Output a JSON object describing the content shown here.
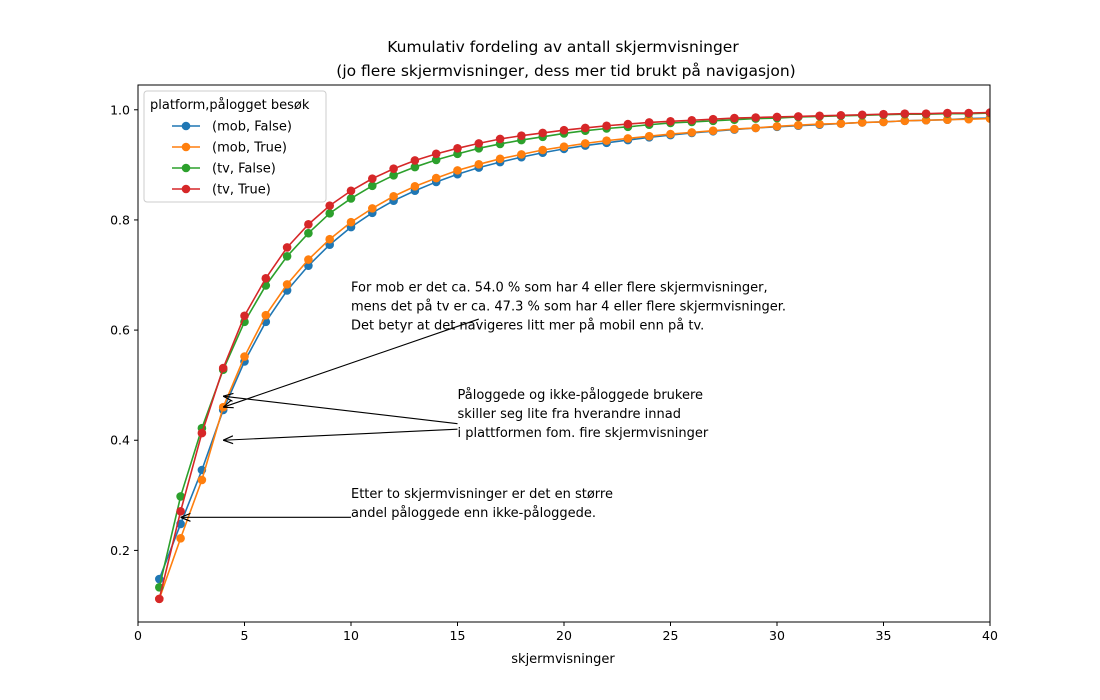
{
  "chart_data": {
    "type": "line",
    "title": "Kumulativ fordeling av antall skjermvisninger",
    "subtitle": "(jo flere skjermvisninger, dess mer tid brukt på navigasjon)",
    "xlabel": "skjermvisninger",
    "ylabel": "",
    "xlim": [
      0,
      40
    ],
    "ylim": [
      0.07,
      1.045
    ],
    "xticks": [
      0,
      5,
      10,
      15,
      20,
      25,
      30,
      35,
      40
    ],
    "xtick_labels": [
      "0",
      "5",
      "10",
      "15",
      "20",
      "25",
      "30",
      "35",
      "40"
    ],
    "yticks": [
      0.2,
      0.4,
      0.6,
      0.8,
      1.0
    ],
    "ytick_labels": [
      "0.2",
      "0.4",
      "0.6",
      "0.8",
      "1.0"
    ],
    "grid": false,
    "legend": {
      "title": "platform,pålogget besøk",
      "placement": "top-left"
    },
    "x": [
      1,
      2,
      3,
      4,
      5,
      6,
      7,
      8,
      9,
      10,
      11,
      12,
      13,
      14,
      15,
      16,
      17,
      18,
      19,
      20,
      21,
      22,
      23,
      24,
      25,
      26,
      27,
      28,
      29,
      30,
      31,
      32,
      33,
      34,
      35,
      36,
      37,
      38,
      39,
      40
    ],
    "series": [
      {
        "name": "(mob, False)",
        "color": "#1f77b4",
        "values": [
          0.148,
          0.248,
          0.346,
          0.455,
          0.543,
          0.615,
          0.672,
          0.717,
          0.755,
          0.787,
          0.813,
          0.835,
          0.853,
          0.869,
          0.883,
          0.895,
          0.905,
          0.914,
          0.922,
          0.929,
          0.935,
          0.94,
          0.945,
          0.95,
          0.954,
          0.958,
          0.961,
          0.964,
          0.967,
          0.969,
          0.971,
          0.973,
          0.975,
          0.977,
          0.978,
          0.98,
          0.981,
          0.982,
          0.984,
          0.985
        ]
      },
      {
        "name": "(mob, True)",
        "color": "#ff7f0e",
        "values": [
          0.112,
          0.222,
          0.328,
          0.46,
          0.552,
          0.627,
          0.683,
          0.728,
          0.765,
          0.796,
          0.821,
          0.843,
          0.861,
          0.876,
          0.89,
          0.901,
          0.911,
          0.919,
          0.927,
          0.933,
          0.939,
          0.944,
          0.948,
          0.952,
          0.956,
          0.959,
          0.962,
          0.965,
          0.967,
          0.97,
          0.972,
          0.974,
          0.975,
          0.977,
          0.978,
          0.98,
          0.981,
          0.982,
          0.983,
          0.984
        ]
      },
      {
        "name": "(tv, False)",
        "color": "#2ca02c",
        "values": [
          0.133,
          0.298,
          0.422,
          0.528,
          0.615,
          0.681,
          0.734,
          0.776,
          0.812,
          0.839,
          0.862,
          0.881,
          0.896,
          0.909,
          0.92,
          0.93,
          0.938,
          0.945,
          0.951,
          0.957,
          0.962,
          0.966,
          0.969,
          0.973,
          0.976,
          0.978,
          0.98,
          0.982,
          0.984,
          0.985,
          0.987,
          0.988,
          0.989,
          0.99,
          0.991,
          0.992,
          0.992,
          0.993,
          0.993,
          0.994
        ]
      },
      {
        "name": "(tv, True)",
        "color": "#d62728",
        "values": [
          0.112,
          0.271,
          0.413,
          0.531,
          0.626,
          0.694,
          0.75,
          0.792,
          0.826,
          0.853,
          0.875,
          0.893,
          0.908,
          0.92,
          0.93,
          0.939,
          0.947,
          0.953,
          0.958,
          0.963,
          0.967,
          0.971,
          0.974,
          0.977,
          0.979,
          0.981,
          0.983,
          0.985,
          0.986,
          0.987,
          0.988,
          0.989,
          0.99,
          0.991,
          0.992,
          0.993,
          0.993,
          0.994,
          0.994,
          0.995
        ]
      }
    ],
    "annotations": [
      {
        "name": "annotation-mob-vs-tv",
        "lines": [
          "For mob er det ca. 54.0 % som har 4 eller flere skjermvisninger,",
          "mens det på tv er ca. 47.3 % som har 4 eller flere skjermvisninger.",
          "Det betyr at det navigeres litt mer på mobil enn på tv."
        ],
        "text_at": [
          10.0,
          0.67
        ],
        "arrows": [
          {
            "from": [
              16.0,
              0.62
            ],
            "to": [
              4.0,
              0.46
            ]
          }
        ]
      },
      {
        "name": "annotation-logged-in",
        "lines": [
          "Påloggede og ikke-påloggede brukere",
          "skiller seg lite fra hverandre innad",
          "i plattformen fom. fire skjermvisninger"
        ],
        "text_at": [
          15.0,
          0.475
        ],
        "arrows": [
          {
            "from": [
              15.0,
              0.43
            ],
            "to": [
              4.0,
              0.48
            ]
          },
          {
            "from": [
              15.0,
              0.42
            ],
            "to": [
              4.0,
              0.4
            ]
          }
        ]
      },
      {
        "name": "annotation-after-two",
        "lines": [
          "Etter to skjermvisninger er det en større",
          "andel påloggede enn ikke-påloggede."
        ],
        "text_at": [
          10.0,
          0.295
        ],
        "arrows": [
          {
            "from": [
              10.0,
              0.26
            ],
            "to": [
              2.0,
              0.26
            ]
          }
        ]
      }
    ]
  }
}
